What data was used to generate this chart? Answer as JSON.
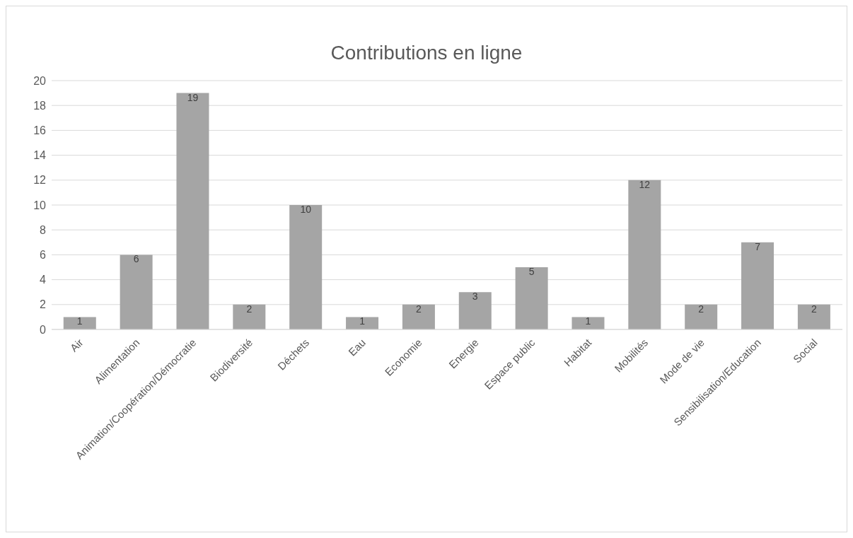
{
  "chart_data": {
    "type": "bar",
    "title": "Contributions en ligne",
    "categories": [
      "Air",
      "Alimentation",
      "Animation/Coopération/Démocratie",
      "Biodiversité",
      "Déchets",
      "Eau",
      "Economie",
      "Energie",
      "Espace public",
      "Habitat",
      "Mobilités",
      "Mode de vie",
      "Sensibilisation/Education",
      "Social"
    ],
    "values": [
      1,
      6,
      19,
      2,
      10,
      1,
      2,
      3,
      5,
      1,
      12,
      2,
      7,
      2
    ],
    "color": "#a5a5a5",
    "ylim": [
      0,
      20
    ],
    "yticks": [
      0,
      2,
      4,
      6,
      8,
      10,
      12,
      14,
      16,
      18,
      20
    ],
    "grid": "y",
    "data_labels": true
  }
}
